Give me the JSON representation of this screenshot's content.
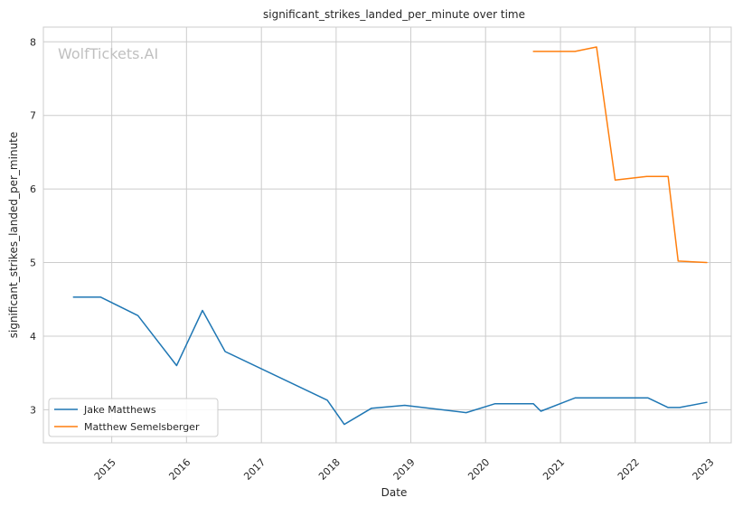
{
  "chart_data": {
    "type": "line",
    "title": "significant_strikes_landed_per_minute over time",
    "xlabel": "Date",
    "ylabel": "significant_strikes_landed_per_minute",
    "watermark": "WolfTickets.AI",
    "x_axis": {
      "type": "date",
      "range": [
        "2014-02-01",
        "2023-04-15"
      ],
      "ticks": [
        "2015",
        "2016",
        "2017",
        "2018",
        "2019",
        "2020",
        "2021",
        "2022",
        "2023"
      ],
      "tick_dates": [
        "2015-01-01",
        "2016-01-01",
        "2017-01-01",
        "2018-01-01",
        "2019-01-01",
        "2020-01-01",
        "2021-01-01",
        "2022-01-01",
        "2023-01-01"
      ]
    },
    "y_axis": {
      "range": [
        2.55,
        8.2
      ],
      "ticks": [
        3,
        4,
        5,
        6,
        7,
        8
      ]
    },
    "grid": true,
    "legend_position": "lower-left",
    "series": [
      {
        "name": "Jake Matthews",
        "color": "#1f77b4",
        "points": [
          {
            "x": "2014-06-28",
            "y": 4.53
          },
          {
            "x": "2014-11-08",
            "y": 4.53
          },
          {
            "x": "2015-05-09",
            "y": 4.28
          },
          {
            "x": "2015-11-14",
            "y": 3.6
          },
          {
            "x": "2016-03-19",
            "y": 4.35
          },
          {
            "x": "2016-07-08",
            "y": 3.79
          },
          {
            "x": "2017-11-19",
            "y": 3.13
          },
          {
            "x": "2018-02-10",
            "y": 2.8
          },
          {
            "x": "2018-06-23",
            "y": 3.02
          },
          {
            "x": "2018-12-02",
            "y": 3.06
          },
          {
            "x": "2019-09-28",
            "y": 2.96
          },
          {
            "x": "2020-02-15",
            "y": 3.08
          },
          {
            "x": "2020-08-22",
            "y": 3.08
          },
          {
            "x": "2020-09-27",
            "y": 2.98
          },
          {
            "x": "2021-03-13",
            "y": 3.16
          },
          {
            "x": "2022-03-05",
            "y": 3.16
          },
          {
            "x": "2022-06-11",
            "y": 3.03
          },
          {
            "x": "2022-08-06",
            "y": 3.03
          },
          {
            "x": "2022-12-17",
            "y": 3.1
          }
        ]
      },
      {
        "name": "Matthew Semelsberger",
        "color": "#ff7f0e",
        "points": [
          {
            "x": "2020-08-22",
            "y": 7.87
          },
          {
            "x": "2021-03-13",
            "y": 7.87
          },
          {
            "x": "2021-06-26",
            "y": 7.93
          },
          {
            "x": "2021-09-25",
            "y": 6.12
          },
          {
            "x": "2022-02-26",
            "y": 6.17
          },
          {
            "x": "2022-06-11",
            "y": 6.17
          },
          {
            "x": "2022-07-30",
            "y": 5.02
          },
          {
            "x": "2022-12-17",
            "y": 5.0
          }
        ]
      }
    ]
  }
}
